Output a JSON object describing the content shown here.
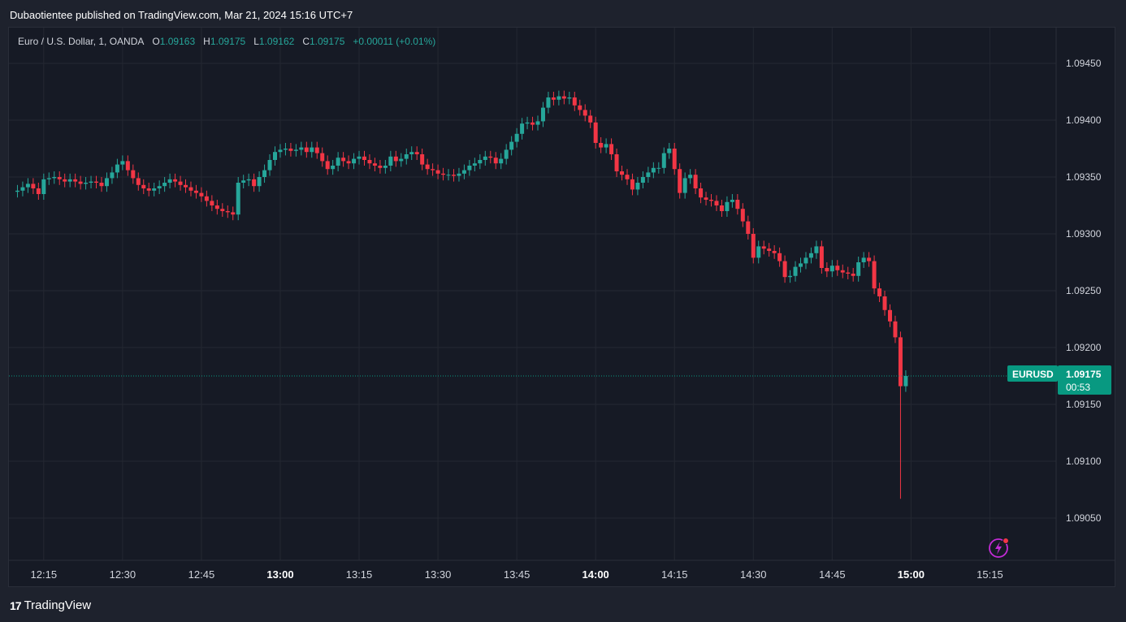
{
  "header": {
    "published": "Dubaotientee published on TradingView.com, Mar 21, 2024 15:16 UTC+7"
  },
  "legend": {
    "symbol": "Euro / U.S. Dollar, 1, OANDA",
    "o_label": "O",
    "o_value": "1.09163",
    "h_label": "H",
    "h_value": "1.09175",
    "l_label": "L",
    "l_value": "1.09162",
    "c_label": "C",
    "c_value": "1.09175",
    "change": "+0.00011 (+0.01%)"
  },
  "price_tag": {
    "symbol": "EURUSD",
    "price": "1.09175",
    "countdown": "00:53"
  },
  "brand": {
    "name": "TradingView"
  },
  "colors": {
    "up": "#26a69a",
    "down": "#f23645",
    "bg": "#161a25",
    "grid": "#242832",
    "text": "#d1d4dc",
    "accent": "#089981",
    "bolt": "#c32bd6"
  },
  "chart_data": {
    "type": "candlestick",
    "ylim": [
      1.0902,
      1.09475
    ],
    "y_ticks": [
      "1.09450",
      "1.09400",
      "1.09350",
      "1.09300",
      "1.09250",
      "1.09200",
      "1.09150",
      "1.09100",
      "1.09050"
    ],
    "x_ticks": [
      {
        "label": "12:15",
        "bold": false
      },
      {
        "label": "12:30",
        "bold": false
      },
      {
        "label": "12:45",
        "bold": false
      },
      {
        "label": "13:00",
        "bold": true
      },
      {
        "label": "13:15",
        "bold": false
      },
      {
        "label": "13:30",
        "bold": false
      },
      {
        "label": "13:45",
        "bold": false
      },
      {
        "label": "14:00",
        "bold": true
      },
      {
        "label": "14:15",
        "bold": false
      },
      {
        "label": "14:30",
        "bold": false
      },
      {
        "label": "14:45",
        "bold": false
      },
      {
        "label": "15:00",
        "bold": true
      },
      {
        "label": "15:15",
        "bold": false
      }
    ],
    "start_time": "12:09",
    "last_price": 1.09175,
    "closes": [
      1.09337,
      1.09338,
      1.09341,
      1.09344,
      1.0934,
      1.09335,
      1.09348,
      1.09349,
      1.0935,
      1.09348,
      1.09346,
      1.09348,
      1.09346,
      1.09344,
      1.09345,
      1.09346,
      1.09345,
      1.09342,
      1.09349,
      1.09354,
      1.09361,
      1.09364,
      1.09356,
      1.09349,
      1.09343,
      1.0934,
      1.09338,
      1.0934,
      1.09342,
      1.09345,
      1.09348,
      1.09346,
      1.09343,
      1.09341,
      1.09338,
      1.09336,
      1.09333,
      1.09329,
      1.09325,
      1.09322,
      1.0932,
      1.09319,
      1.09317,
      1.09345,
      1.09347,
      1.09348,
      1.09342,
      1.0935,
      1.09356,
      1.09365,
      1.09372,
      1.09374,
      1.09375,
      1.09373,
      1.09374,
      1.09376,
      1.09372,
      1.09376,
      1.09371,
      1.09364,
      1.09357,
      1.0936,
      1.09367,
      1.09364,
      1.09362,
      1.09366,
      1.09368,
      1.09365,
      1.09362,
      1.0936,
      1.09358,
      1.0936,
      1.09368,
      1.09364,
      1.09366,
      1.0937,
      1.09372,
      1.0937,
      1.09361,
      1.09357,
      1.09356,
      1.09353,
      1.09352,
      1.09352,
      1.09351,
      1.09353,
      1.09356,
      1.0936,
      1.09362,
      1.09365,
      1.09368,
      1.09367,
      1.09362,
      1.09366,
      1.09374,
      1.09381,
      1.09388,
      1.09397,
      1.09398,
      1.09396,
      1.09399,
      1.09411,
      1.0942,
      1.09418,
      1.09421,
      1.09419,
      1.0942,
      1.09413,
      1.09409,
      1.09404,
      1.09398,
      1.0938,
      1.09376,
      1.09379,
      1.0937,
      1.09355,
      1.09352,
      1.09348,
      1.09339,
      1.09345,
      1.0935,
      1.09354,
      1.09358,
      1.09358,
      1.09371,
      1.09375,
      1.09357,
      1.09336,
      1.09349,
      1.09352,
      1.0934,
      1.09332,
      1.0933,
      1.09329,
      1.09325,
      1.0932,
      1.09328,
      1.0933,
      1.09322,
      1.09311,
      1.093,
      1.09279,
      1.09289,
      1.09287,
      1.09285,
      1.09283,
      1.09276,
      1.09262,
      1.09263,
      1.09271,
      1.09274,
      1.09279,
      1.09283,
      1.09289,
      1.0927,
      1.09267,
      1.09272,
      1.09268,
      1.09266,
      1.09265,
      1.09263,
      1.09275,
      1.09279,
      1.09276,
      1.09252,
      1.09245,
      1.09233,
      1.09223,
      1.09209,
      1.09166,
      1.09175
    ]
  }
}
